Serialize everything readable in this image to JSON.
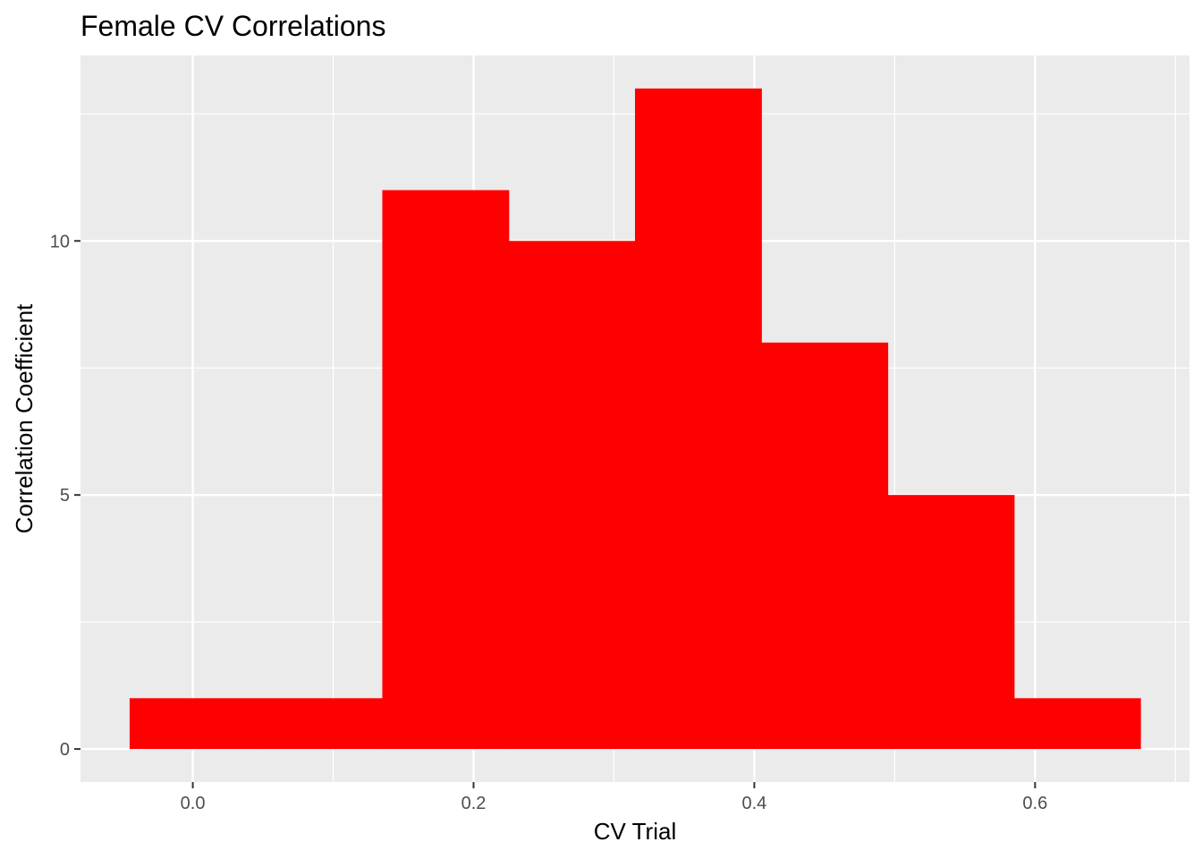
{
  "chart_data": {
    "type": "bar",
    "title": "Female CV Correlations",
    "xlabel": "CV Trial",
    "ylabel": "Correlation Coefficient",
    "bar_color": "#ff0000",
    "panel_background": "#ebebeb",
    "grid": true,
    "xlim": [
      -0.08,
      0.71
    ],
    "ylim": [
      -0.65,
      13.65
    ],
    "x_ticks": [
      {
        "value": 0.0,
        "label": "0.0"
      },
      {
        "value": 0.2,
        "label": "0.2"
      },
      {
        "value": 0.4,
        "label": "0.4"
      },
      {
        "value": 0.6,
        "label": "0.6"
      }
    ],
    "y_ticks": [
      {
        "value": 0,
        "label": "0"
      },
      {
        "value": 5,
        "label": "5"
      },
      {
        "value": 10,
        "label": "10"
      }
    ],
    "bins": [
      {
        "x0": -0.045,
        "x1": 0.045,
        "count": 1
      },
      {
        "x0": 0.045,
        "x1": 0.135,
        "count": 1
      },
      {
        "x0": 0.135,
        "x1": 0.225,
        "count": 11
      },
      {
        "x0": 0.225,
        "x1": 0.315,
        "count": 10
      },
      {
        "x0": 0.315,
        "x1": 0.405,
        "count": 13
      },
      {
        "x0": 0.405,
        "x1": 0.495,
        "count": 8
      },
      {
        "x0": 0.495,
        "x1": 0.585,
        "count": 5
      },
      {
        "x0": 0.585,
        "x1": 0.675,
        "count": 1
      }
    ]
  }
}
